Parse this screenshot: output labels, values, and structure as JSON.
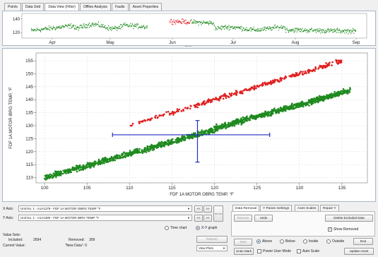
{
  "tabs": [
    {
      "label": "Points"
    },
    {
      "label": "Data Grid"
    },
    {
      "label": "Data View (Filter)"
    },
    {
      "label": "Offline Analysis"
    },
    {
      "label": "Faults"
    },
    {
      "label": "Asset Properties"
    }
  ],
  "active_tab": 2,
  "chart_data": [
    {
      "type": "scatter",
      "name": "time-overview",
      "ylim": [
        112,
        148
      ],
      "yticks": [
        120,
        140
      ],
      "xticks": [
        "Apr",
        "May",
        "Jun",
        "Jul",
        "Aug",
        "Sep"
      ],
      "series": [
        {
          "color": "#1f8a1f",
          "role": "kept"
        },
        {
          "color": "#e02020",
          "role": "removed"
        }
      ]
    },
    {
      "type": "scatter",
      "xlabel": "FDF 1A MOTOR OBRG TEMP, °F",
      "ylabel": "FDF 1A MOTOR IBRG TEMP, °F",
      "xlim": [
        99,
        138
      ],
      "ylim": [
        108,
        158
      ],
      "xticks": [
        100,
        105,
        110,
        115,
        120,
        125,
        130,
        135
      ],
      "yticks": [
        110,
        115,
        120,
        125,
        130,
        135,
        140,
        145,
        150,
        155
      ],
      "series": [
        {
          "color": "#1f8a1f",
          "role": "kept",
          "x_range": [
            100,
            136
          ],
          "y_at_xmin": 110,
          "y_at_xmax": 143
        },
        {
          "color": "#e02020",
          "role": "removed",
          "x_range": [
            110,
            135
          ],
          "y_at_xmin": 130,
          "y_at_xmax": 155
        }
      ],
      "crosshair": {
        "x": 118,
        "y": 126.5,
        "x_min": 108,
        "x_max": 126.5,
        "y_min": 116,
        "y_max": 132
      }
    }
  ],
  "axes": {
    "x_label": "X Axis:",
    "x_value": "Unit No. 1 - A1A1379 - FDF 1A MOTOR OBRG TEMP °F",
    "y_label": "Y Axis:",
    "y_value": "Unit No. 1 - A1A1380 - FDF 1A MOTOR IBRG TEMP °F",
    "prev": "<<",
    "next": ">>",
    "swap": "<< >>"
  },
  "value_sets": {
    "title": "Value Sets:",
    "included_label": "Included:",
    "included_value": "2694",
    "removed_label": "Removed:",
    "removed_value": "309",
    "current_label": "Current Value:",
    "current_value": "\"New Data\": 0"
  },
  "graph_mode": {
    "time_chart": "Time chart",
    "xy_graph": "X-Y graph",
    "selected": "xy_graph"
  },
  "refresh": "Refresh",
  "view_plots": "View Plots",
  "right_tabs": [
    {
      "label": "Data Removal"
    },
    {
      "label": "Y Param Settings"
    },
    {
      "label": "Axes Scales"
    },
    {
      "label": "Repair Y"
    }
  ],
  "removal": {
    "remove": "Remove",
    "undo": "Undo",
    "delete_excluded": "Delete Excluded Data",
    "show_removed": "Show Removed",
    "start": "Start",
    "above": "Above",
    "below": "Below",
    "inside": "Inside",
    "outside": "Outside",
    "end": "End",
    "undo_mark": "Undo Mark",
    "power_user": "Power User Mode",
    "auto_scale": "Auto Scale",
    "update_asset": "Update Asset"
  }
}
